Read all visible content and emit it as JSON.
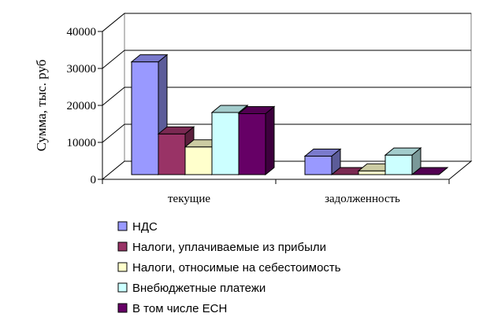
{
  "chart_data": {
    "type": "bar",
    "title": "",
    "xlabel": "",
    "ylabel": "Сумма, тыс. руб",
    "categories": [
      "текущие",
      "задолженность"
    ],
    "ylim": [
      0,
      40000
    ],
    "yticks": [
      "0",
      "10000",
      "20000",
      "30000",
      "40000"
    ],
    "grid": true,
    "legend_position": "bottom",
    "three_d": true,
    "series": [
      {
        "name": "НДС",
        "values": [
          30500,
          5000
        ],
        "color": "#9999ff",
        "side": "#5c5c99",
        "top": "#7a7acc"
      },
      {
        "name": "Налоги, уплачиваемые из прибыли",
        "values": [
          11000,
          0
        ],
        "color": "#993366",
        "side": "#5c1f3d",
        "top": "#7a2952"
      },
      {
        "name": "Налоги, относимые на себестоимость",
        "values": [
          7500,
          1000
        ],
        "color": "#ffffcc",
        "side": "#99997a",
        "top": "#cccca3"
      },
      {
        "name": "Внебюджетные платежи",
        "values": [
          16800,
          5300
        ],
        "color": "#ccffff",
        "side": "#7a9999",
        "top": "#a3cccc"
      },
      {
        "name": "В том числе ЕСН",
        "values": [
          16500,
          0
        ],
        "color": "#660066",
        "side": "#3d003d",
        "top": "#520052"
      }
    ]
  }
}
